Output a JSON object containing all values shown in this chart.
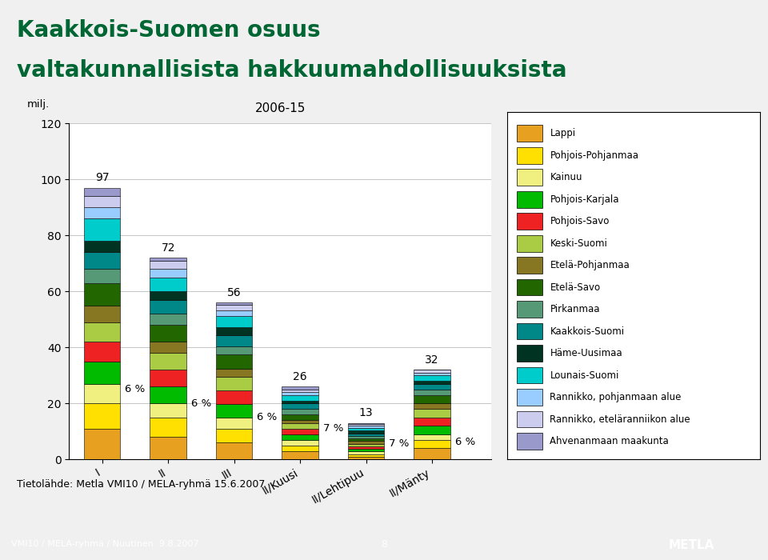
{
  "title_line1": "Kaakkois-Suomen osuus",
  "title_line2": "valtakunnallisista hakkuumahdollisuuksista",
  "subtitle": "2006-15",
  "source_text": "Tietolähde: Metla VMI10 / MELA-ryhmä 15.6.2007",
  "footer_text": "VMI10 / MELA-ryhmä / Nuutinen  9.8.2007",
  "footer_page": "8",
  "categories": [
    "I",
    "II",
    "III",
    "II/Kuusi",
    "II/Lehtipuu",
    "II/Mänty"
  ],
  "totals": [
    97,
    72,
    56,
    26,
    13,
    32
  ],
  "show_total": [
    true,
    true,
    true,
    true,
    true,
    true
  ],
  "pct_labels": [
    "6 %",
    "6 %",
    "6 %",
    "7 %",
    "7 %",
    "6 %"
  ],
  "pct_y": [
    25,
    20,
    15,
    11,
    5.5,
    6
  ],
  "regions": [
    "Lappi",
    "Pohjois-Pohjanmaa",
    "Kainuu",
    "Pohjois-Karjala",
    "Pohjois-Savo",
    "Keski-Suomi",
    "Etelä-Pohjanmaa",
    "Etelä-Savo",
    "Pirkanmaa",
    "Kaakkois-Suomi",
    "Häme-Uusimaa",
    "Lounais-Suomi",
    "Rannikko, pohjanmaan alue",
    "Rannikko, eteläranniikon alue",
    "Ahvenanmaan maakunta"
  ],
  "colors": [
    "#E8A020",
    "#FFE000",
    "#F0F080",
    "#00BB00",
    "#EE2222",
    "#AACC44",
    "#887722",
    "#226600",
    "#559977",
    "#008888",
    "#003322",
    "#00CCCC",
    "#99CCFF",
    "#CCCCEE",
    "#9999CC"
  ],
  "bar_data": {
    "I": [
      11,
      9,
      7,
      8,
      7,
      7,
      6,
      8,
      5,
      6,
      4,
      8,
      4,
      4,
      3
    ],
    "II": [
      8,
      7,
      5,
      6,
      6,
      6,
      4,
      6,
      4,
      5,
      3,
      5,
      3,
      3,
      1
    ],
    "III": [
      6,
      5,
      4,
      5,
      5,
      5,
      3,
      5,
      3,
      4,
      3,
      4,
      2,
      2,
      1
    ],
    "II/Kuusi": [
      3,
      2,
      2,
      2,
      2,
      2,
      1,
      2,
      2,
      2,
      1,
      2,
      1,
      1,
      1
    ],
    "II/Lehtipuu": [
      1,
      1,
      1,
      1,
      1,
      1,
      1,
      1,
      1,
      1,
      1,
      1,
      1,
      0.5,
      0.5
    ],
    "II/Mänty": [
      4,
      3,
      2,
      3,
      3,
      3,
      2,
      3,
      2,
      2,
      1,
      2,
      1,
      1,
      0
    ]
  },
  "bg_color": "#F0F0F0",
  "plot_bg": "#FFFFFF",
  "title_color": "#006633",
  "title_fontsize": 20,
  "footer_bg": "#336633"
}
